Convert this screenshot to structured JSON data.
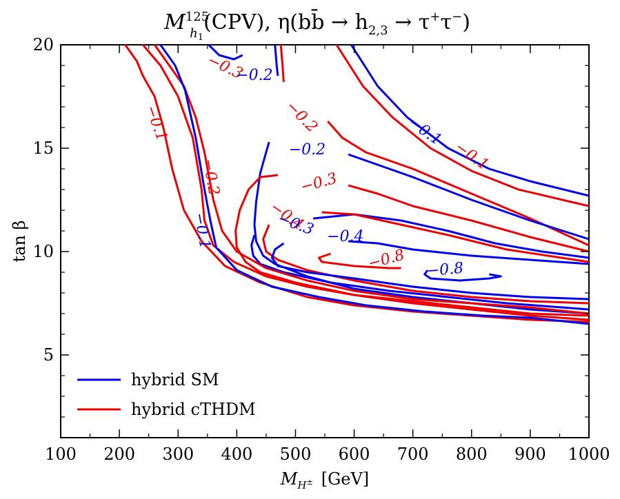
{
  "chart_data": {
    "type": "line",
    "subtype": "contour",
    "title": "M_{h1}^{125}(CPV), η(b b̄ → h_{2,3} → τ⁺τ⁻)",
    "title_parts": {
      "main": "M",
      "sup": "125",
      "sub": "h",
      "subsub": "1",
      "rest": "(CPV), η(bb̄ → h",
      "rest_sub": "2,3",
      "tail": " → τ",
      "tail_sup1": "+",
      "tau2": "τ",
      "tail_sup2": "−",
      "close": ")"
    },
    "xlabel": "M_{H±} [GeV]",
    "xlabel_parts": {
      "main": "M",
      "sub": "H",
      "subsup": "±",
      "unit": "[GeV]"
    },
    "ylabel": "tan β",
    "xlim": [
      100,
      1000
    ],
    "ylim": [
      1,
      20
    ],
    "x_ticks": [
      100,
      200,
      300,
      400,
      500,
      600,
      700,
      800,
      900,
      1000
    ],
    "x_tick_labels": [
      "100",
      "200",
      "300",
      "400",
      "500",
      "600",
      "700",
      "800",
      "900",
      "1000"
    ],
    "y_ticks": [
      5,
      10,
      15,
      20
    ],
    "y_tick_labels": [
      "5",
      "10",
      "15",
      "20"
    ],
    "colors": {
      "blue": "#0000ee",
      "red": "#ee0000",
      "axis": "#000000"
    },
    "legend": {
      "position": "lower-left",
      "entries": [
        {
          "label": "hybrid SM",
          "color": "#0000ee"
        },
        {
          "label": "hybrid cTHDM",
          "color": "#ee0000"
        }
      ]
    },
    "series": [
      {
        "name": "hybrid SM -0.1",
        "color": "#0000ee",
        "level": "-0.1",
        "points": [
          [
            595,
            20
          ],
          [
            640,
            18
          ],
          [
            690,
            16.5
          ],
          [
            760,
            15
          ],
          [
            830,
            14
          ],
          [
            900,
            13.4
          ],
          [
            1000,
            12.7
          ]
        ]
      },
      {
        "name": "hybrid cTHDM -0.1",
        "color": "#ee0000",
        "level": "-0.1",
        "points": [
          [
            570,
            20
          ],
          [
            615,
            18
          ],
          [
            665,
            16.5
          ],
          [
            730,
            15
          ],
          [
            800,
            13.9
          ],
          [
            880,
            13
          ],
          [
            1000,
            12.2
          ]
        ]
      },
      {
        "name": "hybrid SM -0.2 upper",
        "color": "#0000ee",
        "level": "-0.2",
        "points": [
          [
            352,
            20
          ],
          [
            370,
            19.5
          ],
          [
            395,
            19.3
          ],
          [
            410,
            19.5
          ]
        ]
      },
      {
        "name": "hybrid SM -0.2 right upper",
        "color": "#0000ee",
        "level": "-0.2",
        "points": [
          [
            465,
            20
          ],
          [
            468,
            19
          ],
          [
            470,
            18.5
          ]
        ]
      },
      {
        "name": "hybrid cTHDM -0.2 right upper",
        "color": "#ee0000",
        "level": "-0.2",
        "points": [
          [
            475,
            20
          ],
          [
            478,
            19
          ],
          [
            480,
            18.2
          ]
        ]
      },
      {
        "name": "hybrid cTHDM -0.2 middle",
        "color": "#ee0000",
        "level": "-0.2",
        "points": [
          [
            555,
            16.3
          ],
          [
            580,
            15.5
          ],
          [
            620,
            14.8
          ],
          [
            700,
            14
          ],
          [
            800,
            12.8
          ],
          [
            900,
            11.6
          ],
          [
            1000,
            10.3
          ]
        ]
      },
      {
        "name": "hybrid SM -0.2 middle",
        "color": "#0000ee",
        "level": "-0.2",
        "points": [
          [
            590,
            14.7
          ],
          [
            640,
            14.2
          ],
          [
            700,
            13.6
          ],
          [
            800,
            12.5
          ],
          [
            900,
            11.5
          ],
          [
            1000,
            10.6
          ]
        ]
      },
      {
        "name": "hybrid SM -0.2 left",
        "color": "#0000ee",
        "level": "-0.2",
        "points": [
          [
            455,
            15.3
          ],
          [
            440,
            13.8
          ],
          [
            433,
            12.4
          ],
          [
            430,
            11.3
          ],
          [
            433,
            10.5
          ],
          [
            445,
            9.8
          ],
          [
            465,
            9.4
          ],
          [
            520,
            8.8
          ],
          [
            600,
            8.2
          ],
          [
            700,
            7.8
          ],
          [
            800,
            7.5
          ],
          [
            900,
            7.2
          ],
          [
            1000,
            7.0
          ]
        ]
      },
      {
        "name": "hybrid cTHDM -0.3",
        "color": "#ee0000",
        "level": "-0.3",
        "points": [
          [
            470,
            13.7
          ],
          [
            440,
            13.6
          ],
          [
            420,
            13
          ],
          [
            405,
            12
          ],
          [
            398,
            11
          ],
          [
            400,
            10.2
          ],
          [
            415,
            9.5
          ],
          [
            440,
            9
          ],
          [
            500,
            8.5
          ],
          [
            600,
            7.9
          ],
          [
            700,
            7.5
          ],
          [
            800,
            7.2
          ],
          [
            900,
            6.9
          ],
          [
            1000,
            6.7
          ]
        ]
      },
      {
        "name": "hybrid cTHDM -0.3 right",
        "color": "#ee0000",
        "level": "-0.3",
        "points": [
          [
            590,
            13.2
          ],
          [
            640,
            12.8
          ],
          [
            700,
            12.2
          ],
          [
            800,
            11.5
          ],
          [
            900,
            10.7
          ],
          [
            1000,
            10.0
          ]
        ]
      },
      {
        "name": "hybrid SM -0.3",
        "color": "#0000ee",
        "level": "-0.3",
        "points": [
          [
            430,
            10.8
          ],
          [
            425,
            10.3
          ],
          [
            428,
            9.8
          ],
          [
            440,
            9.4
          ],
          [
            480,
            9.0
          ],
          [
            560,
            8.5
          ],
          [
            660,
            8.1
          ],
          [
            760,
            7.8
          ],
          [
            860,
            7.5
          ],
          [
            1000,
            7.2
          ]
        ]
      },
      {
        "name": "hybrid SM -0.3 right",
        "color": "#0000ee",
        "level": "-0.3",
        "points": [
          [
            530,
            11.6
          ],
          [
            600,
            11.8
          ],
          [
            680,
            11.5
          ],
          [
            760,
            11
          ],
          [
            840,
            10.4
          ],
          [
            920,
            10
          ],
          [
            1000,
            9.7
          ]
        ]
      },
      {
        "name": "hybrid cTHDM -0.4",
        "color": "#ee0000",
        "level": "-0.4",
        "points": [
          [
            455,
            11.3
          ],
          [
            445,
            10.6
          ],
          [
            450,
            10
          ],
          [
            470,
            9.6
          ],
          [
            520,
            9.1
          ],
          [
            600,
            8.6
          ],
          [
            700,
            8.1
          ],
          [
            800,
            7.8
          ],
          [
            900,
            7.6
          ],
          [
            1000,
            7.5
          ]
        ]
      },
      {
        "name": "hybrid cTHDM -0.4 right",
        "color": "#ee0000",
        "level": "-0.4",
        "points": [
          [
            545,
            11.9
          ],
          [
            600,
            11.8
          ],
          [
            680,
            11.3
          ],
          [
            760,
            10.8
          ],
          [
            860,
            10.1
          ],
          [
            1000,
            9.5
          ]
        ]
      },
      {
        "name": "hybrid SM -0.4",
        "color": "#0000ee",
        "level": "-0.4",
        "points": [
          [
            480,
            10.4
          ],
          [
            465,
            10.1
          ],
          [
            460,
            9.7
          ],
          [
            470,
            9.3
          ],
          [
            520,
            9.0
          ],
          [
            600,
            8.7
          ],
          [
            700,
            8.3
          ],
          [
            800,
            8.0
          ],
          [
            900,
            7.8
          ],
          [
            1000,
            7.7
          ]
        ]
      },
      {
        "name": "hybrid SM -0.4 right",
        "color": "#0000ee",
        "level": "-0.4",
        "points": [
          [
            590,
            10.5
          ],
          [
            640,
            10.4
          ],
          [
            700,
            10.1
          ],
          [
            800,
            9.8
          ],
          [
            900,
            9.6
          ],
          [
            1000,
            9.4
          ]
        ]
      },
      {
        "name": "hybrid cTHDM -0.8",
        "color": "#ee0000",
        "level": "-0.8",
        "points": [
          [
            560,
            9.9
          ],
          [
            540,
            9.7
          ],
          [
            545,
            9.5
          ],
          [
            600,
            9.3
          ],
          [
            660,
            9.2
          ],
          [
            680,
            9.2
          ]
        ]
      },
      {
        "name": "hybrid SM -0.8",
        "color": "#0000ee",
        "level": "-0.8",
        "points": [
          [
            725,
            9.1
          ],
          [
            720,
            8.9
          ],
          [
            730,
            8.7
          ],
          [
            780,
            8.6
          ],
          [
            830,
            8.7
          ],
          [
            850,
            8.8
          ],
          [
            830,
            8.9
          ]
        ]
      },
      {
        "name": "hybrid cTHDM -0.1 left",
        "color": "#ee0000",
        "level": "-0.1",
        "points": [
          [
            210,
            20
          ],
          [
            230,
            19.2
          ],
          [
            240,
            18.5
          ],
          [
            260,
            17.5
          ],
          [
            275,
            16
          ],
          [
            290,
            14
          ],
          [
            310,
            12
          ],
          [
            340,
            10.5
          ],
          [
            380,
            9.3
          ],
          [
            440,
            8.5
          ],
          [
            520,
            7.8
          ],
          [
            600,
            7.4
          ],
          [
            700,
            7.1
          ],
          [
            800,
            6.9
          ],
          [
            900,
            6.7
          ],
          [
            1000,
            6.6
          ]
        ]
      },
      {
        "name": "hybrid cTHDM -0.3 left",
        "color": "#ee0000",
        "level": "-0.3",
        "points": [
          [
            260,
            20
          ],
          [
            285,
            19
          ],
          [
            310,
            18
          ],
          [
            330,
            16.5
          ],
          [
            345,
            14.8
          ],
          [
            360,
            12.5
          ],
          [
            375,
            11
          ],
          [
            400,
            10
          ],
          [
            450,
            9.2
          ],
          [
            520,
            8.6
          ],
          [
            600,
            8.1
          ],
          [
            700,
            7.7
          ],
          [
            800,
            7.5
          ],
          [
            900,
            7.3
          ],
          [
            1000,
            7.0
          ]
        ]
      },
      {
        "name": "hybrid cTHDM -0.2 left",
        "color": "#ee0000",
        "level": "-0.2",
        "points": [
          [
            240,
            20
          ],
          [
            270,
            19
          ],
          [
            300,
            17.5
          ],
          [
            325,
            15.5
          ],
          [
            340,
            13
          ],
          [
            345,
            11.5
          ],
          [
            360,
            10.3
          ],
          [
            395,
            9.5
          ],
          [
            450,
            8.8
          ],
          [
            520,
            8.3
          ],
          [
            600,
            7.9
          ],
          [
            700,
            7.6
          ],
          [
            800,
            7.3
          ],
          [
            900,
            7.0
          ],
          [
            1000,
            6.9
          ]
        ]
      },
      {
        "name": "hybrid SM -0.1 left",
        "color": "#0000ee",
        "level": "-0.1",
        "points": [
          [
            270,
            20
          ],
          [
            295,
            19
          ],
          [
            312,
            17.8
          ],
          [
            330,
            15.5
          ],
          [
            345,
            13
          ],
          [
            355,
            11.5
          ],
          [
            365,
            10.2
          ],
          [
            400,
            9.1
          ],
          [
            460,
            8.3
          ],
          [
            540,
            7.8
          ],
          [
            620,
            7.4
          ],
          [
            720,
            7.1
          ],
          [
            820,
            6.9
          ],
          [
            900,
            6.8
          ],
          [
            1000,
            6.5
          ]
        ]
      }
    ],
    "contour_labels": [
      {
        "text": "−0.3",
        "x": 380,
        "y": 18.9,
        "angle": 25,
        "color": "#ee0000"
      },
      {
        "text": "−0.2",
        "x": 430,
        "y": 18.5,
        "angle": 0,
        "color": "#0000ee"
      },
      {
        "text": "−0.1",
        "x": 262,
        "y": 16.2,
        "angle": 70,
        "color": "#ee0000"
      },
      {
        "text": "−0.2",
        "x": 510,
        "y": 16.5,
        "angle": 45,
        "color": "#ee0000"
      },
      {
        "text": "−0.1",
        "x": 720,
        "y": 15.8,
        "angle": 35,
        "color": "#0000ee"
      },
      {
        "text": "−0.1",
        "x": 800,
        "y": 14.6,
        "angle": 35,
        "color": "#ee0000"
      },
      {
        "text": "−0.2",
        "x": 520,
        "y": 14.9,
        "angle": 0,
        "color": "#0000ee"
      },
      {
        "text": "−0.2",
        "x": 355,
        "y": 13.6,
        "angle": 80,
        "color": "#ee0000"
      },
      {
        "text": "−0.3",
        "x": 540,
        "y": 13.3,
        "angle": -15,
        "color": "#ee0000"
      },
      {
        "text": "−0.1",
        "x": 340,
        "y": 11.0,
        "angle": 80,
        "color": "#0000ee"
      },
      {
        "text": "−0.4",
        "x": 485,
        "y": 11.7,
        "angle": 35,
        "color": "#ee0000"
      },
      {
        "text": "−0.3",
        "x": 500,
        "y": 11.3,
        "angle": 20,
        "color": "#0000ee"
      },
      {
        "text": "−0.4",
        "x": 585,
        "y": 10.7,
        "angle": 0,
        "color": "#0000ee"
      },
      {
        "text": "−0.8",
        "x": 655,
        "y": 9.6,
        "angle": -15,
        "color": "#ee0000"
      },
      {
        "text": "−0.8",
        "x": 755,
        "y": 9.1,
        "angle": -5,
        "color": "#0000ee"
      }
    ]
  }
}
